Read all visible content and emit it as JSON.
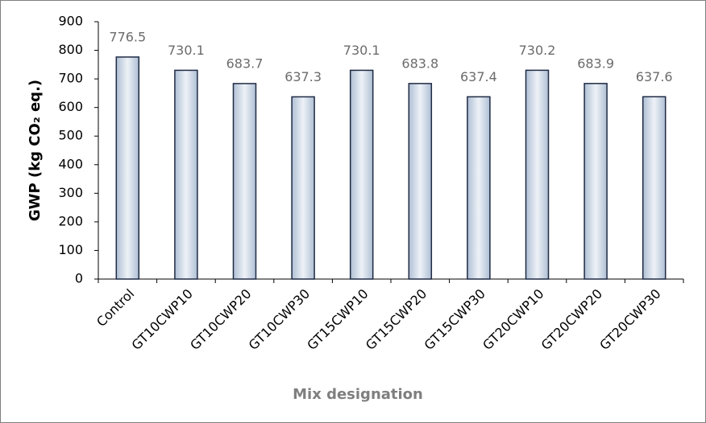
{
  "chart_data": {
    "type": "bar",
    "x_label": "Mix designation",
    "y_label": "GWP (kg CO₂ eq.)",
    "categories": [
      "Control",
      "GT10CWP10",
      "GT10CWP20",
      "GT10CWP30",
      "GT15CWP10",
      "GT15CWP20",
      "GT15CWP30",
      "GT20CWP10",
      "GT20CWP20",
      "GT20CWP30"
    ],
    "values": [
      776.5,
      730.1,
      683.7,
      637.3,
      730.1,
      683.8,
      637.4,
      730.2,
      683.9,
      637.6
    ],
    "color": "#aebfd4",
    "ylim": [
      0,
      900
    ],
    "yticks": [
      0,
      100,
      200,
      300,
      400,
      500,
      600,
      700,
      800,
      900
    ],
    "grid": false
  }
}
